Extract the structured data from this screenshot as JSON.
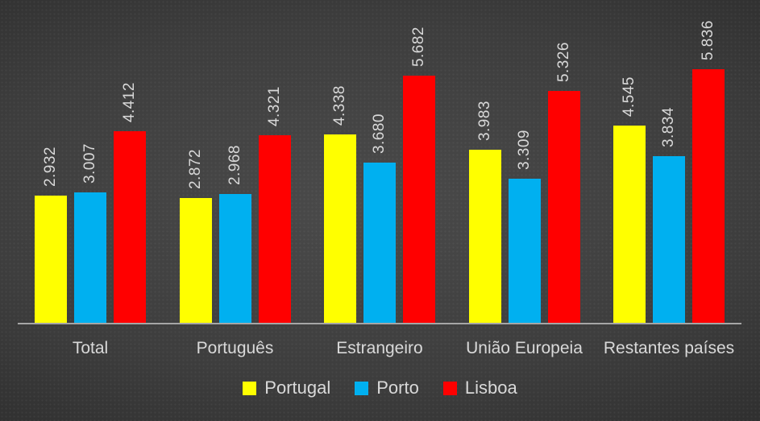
{
  "chart_data": {
    "type": "bar",
    "title": "",
    "categories": [
      "Total",
      "Português",
      "Estrangeiro",
      "União Europeia",
      "Restantes países"
    ],
    "series": [
      {
        "name": "Portugal",
        "color": "#FFFF00",
        "values": [
          2932,
          2872,
          4338,
          3983,
          4545
        ],
        "value_labels": [
          "2.932",
          "2.872",
          "4.338",
          "3.983",
          "4.545"
        ]
      },
      {
        "name": "Porto",
        "color": "#00B0F0",
        "values": [
          3007,
          2968,
          3680,
          3309,
          3834
        ],
        "value_labels": [
          "3.007",
          "2.968",
          "3.680",
          "3.309",
          "3.834"
        ]
      },
      {
        "name": "Lisboa",
        "color": "#FF0000",
        "values": [
          4412,
          4321,
          5682,
          5326,
          5836
        ],
        "value_labels": [
          "4.412",
          "4.321",
          "5.682",
          "5.326",
          "5.836"
        ]
      }
    ],
    "legend": {
      "position": "bottom",
      "entries": [
        {
          "label": "Portugal",
          "color": "#FFFF00"
        },
        {
          "label": "Porto",
          "color": "#00B0F0"
        },
        {
          "label": "Lisboa",
          "color": "#FF0000"
        }
      ]
    },
    "axes": {
      "x_baseline_visible": true,
      "x_baseline_color": "#A6A6A6",
      "y_axis_visible": false,
      "gridlines": false,
      "y_range_implied": [
        0,
        5836
      ]
    },
    "data_labels": {
      "visible": true,
      "orientation": "vertical-bottom-to-top",
      "color": "#D9D9D9"
    }
  },
  "styles": {
    "background_dark": "#242424",
    "background_light": "#4A4A4A",
    "text_color": "#D9D9D9",
    "axis_color": "#A6A6A6"
  }
}
